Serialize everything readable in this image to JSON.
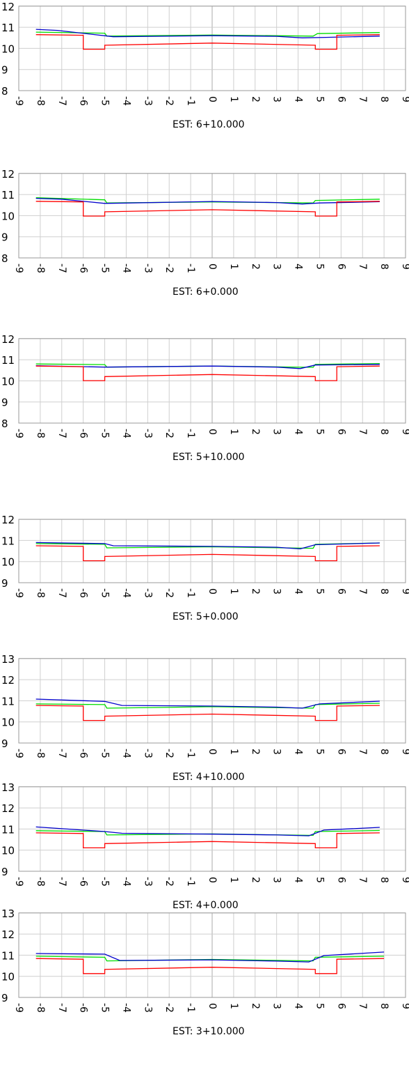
{
  "chart_data": [
    {
      "type": "line",
      "title": "EST:  6+10.000",
      "x_ticks": [
        -9,
        -8,
        -7,
        -6,
        -5,
        -4,
        -3,
        -2,
        -1,
        0,
        1,
        2,
        3,
        4,
        5,
        6,
        7,
        8,
        9
      ],
      "y_ticks": [
        8,
        9,
        10,
        11,
        12
      ],
      "xlim": [
        -9,
        9
      ],
      "ylim": [
        8,
        12
      ],
      "grid": true,
      "series": [
        {
          "color": "#00dd00",
          "points": [
            [
              -8.2,
              10.77
            ],
            [
              -5.0,
              10.72
            ],
            [
              -4.9,
              10.58
            ],
            [
              0,
              10.63
            ],
            [
              4.7,
              10.58
            ],
            [
              4.9,
              10.7
            ],
            [
              7.8,
              10.75
            ]
          ]
        },
        {
          "color": "#0000cc",
          "points": [
            [
              -8.2,
              10.9
            ],
            [
              -7.2,
              10.85
            ],
            [
              -4.6,
              10.55
            ],
            [
              0,
              10.6
            ],
            [
              3.0,
              10.57
            ],
            [
              4.2,
              10.5
            ],
            [
              5.3,
              10.52
            ],
            [
              7.8,
              10.58
            ]
          ]
        },
        {
          "color": "#ff0000",
          "points": [
            [
              -8.2,
              10.65
            ],
            [
              -6.0,
              10.62
            ],
            [
              -6.0,
              9.96
            ],
            [
              -5.0,
              9.96
            ],
            [
              -5.0,
              10.15
            ],
            [
              0,
              10.25
            ],
            [
              4.8,
              10.15
            ],
            [
              4.8,
              9.96
            ],
            [
              5.8,
              9.96
            ],
            [
              5.8,
              10.62
            ],
            [
              7.8,
              10.65
            ]
          ]
        }
      ]
    },
    {
      "type": "line",
      "title": "EST:  6+0.000",
      "x_ticks": [
        -9,
        -8,
        -7,
        -6,
        -5,
        -4,
        -3,
        -2,
        -1,
        0,
        1,
        2,
        3,
        4,
        5,
        6,
        7,
        8,
        9
      ],
      "y_ticks": [
        8,
        9,
        10,
        11,
        12
      ],
      "xlim": [
        -9,
        9
      ],
      "ylim": [
        8,
        12
      ],
      "grid": true,
      "series": [
        {
          "color": "#00dd00",
          "points": [
            [
              -8.2,
              10.85
            ],
            [
              -5.0,
              10.75
            ],
            [
              -4.9,
              10.6
            ],
            [
              0,
              10.65
            ],
            [
              4.7,
              10.6
            ],
            [
              4.8,
              10.72
            ],
            [
              7.8,
              10.78
            ]
          ]
        },
        {
          "color": "#0000cc",
          "points": [
            [
              -8.2,
              10.82
            ],
            [
              -7.0,
              10.78
            ],
            [
              -5.0,
              10.58
            ],
            [
              0,
              10.67
            ],
            [
              3.0,
              10.62
            ],
            [
              4.2,
              10.55
            ],
            [
              5.0,
              10.6
            ],
            [
              7.8,
              10.66
            ]
          ]
        },
        {
          "color": "#ff0000",
          "points": [
            [
              -8.2,
              10.68
            ],
            [
              -6.0,
              10.65
            ],
            [
              -6.0,
              9.98
            ],
            [
              -5.0,
              9.98
            ],
            [
              -5.0,
              10.18
            ],
            [
              0,
              10.28
            ],
            [
              4.8,
              10.18
            ],
            [
              4.8,
              9.98
            ],
            [
              5.8,
              9.98
            ],
            [
              5.8,
              10.65
            ],
            [
              7.8,
              10.68
            ]
          ]
        }
      ]
    },
    {
      "type": "line",
      "title": "EST:  5+10.000",
      "x_ticks": [
        -9,
        -8,
        -7,
        -6,
        -5,
        -4,
        -3,
        -2,
        -1,
        0,
        1,
        2,
        3,
        4,
        5,
        6,
        7,
        8,
        9
      ],
      "y_ticks": [
        8,
        9,
        10,
        11,
        12
      ],
      "xlim": [
        -9,
        9
      ],
      "ylim": [
        8,
        12
      ],
      "grid": true,
      "series": [
        {
          "color": "#00dd00",
          "points": [
            [
              -8.2,
              10.8
            ],
            [
              -5.0,
              10.77
            ],
            [
              -4.9,
              10.65
            ],
            [
              0,
              10.7
            ],
            [
              4.7,
              10.64
            ],
            [
              4.8,
              10.78
            ],
            [
              7.8,
              10.82
            ]
          ]
        },
        {
          "color": "#0000cc",
          "points": [
            [
              -8.2,
              10.72
            ],
            [
              -5.0,
              10.65
            ],
            [
              0,
              10.7
            ],
            [
              3.0,
              10.65
            ],
            [
              4.1,
              10.58
            ],
            [
              4.8,
              10.75
            ],
            [
              7.8,
              10.78
            ]
          ]
        },
        {
          "color": "#ff0000",
          "points": [
            [
              -8.2,
              10.7
            ],
            [
              -6.0,
              10.67
            ],
            [
              -6.0,
              10.01
            ],
            [
              -5.0,
              10.01
            ],
            [
              -5.0,
              10.2
            ],
            [
              0,
              10.3
            ],
            [
              4.8,
              10.2
            ],
            [
              4.8,
              10.01
            ],
            [
              5.8,
              10.01
            ],
            [
              5.8,
              10.67
            ],
            [
              7.8,
              10.7
            ]
          ]
        }
      ]
    },
    {
      "type": "line",
      "title": "EST:  5+0.000",
      "x_ticks": [
        -9,
        -8,
        -7,
        -6,
        -5,
        -4,
        -3,
        -2,
        -1,
        0,
        1,
        2,
        3,
        4,
        5,
        6,
        7,
        8,
        9
      ],
      "y_ticks": [
        9,
        10,
        11,
        12
      ],
      "xlim": [
        -9,
        9
      ],
      "ylim": [
        9,
        12
      ],
      "grid": true,
      "series": [
        {
          "color": "#00dd00",
          "points": [
            [
              -8.2,
              10.85
            ],
            [
              -5.0,
              10.82
            ],
            [
              -4.9,
              10.65
            ],
            [
              0,
              10.7
            ],
            [
              4.7,
              10.63
            ],
            [
              4.8,
              10.82
            ],
            [
              7.8,
              10.88
            ]
          ]
        },
        {
          "color": "#0000cc",
          "points": [
            [
              -8.2,
              10.9
            ],
            [
              -5.0,
              10.85
            ],
            [
              -4.6,
              10.75
            ],
            [
              0,
              10.72
            ],
            [
              3.0,
              10.68
            ],
            [
              4.1,
              10.6
            ],
            [
              4.8,
              10.8
            ],
            [
              7.8,
              10.88
            ]
          ]
        },
        {
          "color": "#ff0000",
          "points": [
            [
              -8.2,
              10.75
            ],
            [
              -6.0,
              10.72
            ],
            [
              -6.0,
              10.04
            ],
            [
              -5.0,
              10.04
            ],
            [
              -5.0,
              10.24
            ],
            [
              0,
              10.34
            ],
            [
              4.8,
              10.24
            ],
            [
              4.8,
              10.04
            ],
            [
              5.8,
              10.04
            ],
            [
              5.8,
              10.72
            ],
            [
              7.8,
              10.75
            ]
          ]
        }
      ]
    },
    {
      "type": "line",
      "title": "EST:  4+10.000",
      "x_ticks": [
        -9,
        -8,
        -7,
        -6,
        -5,
        -4,
        -3,
        -2,
        -1,
        0,
        1,
        2,
        3,
        4,
        5,
        6,
        7,
        8,
        9
      ],
      "y_ticks": [
        9,
        10,
        11,
        12,
        13
      ],
      "xlim": [
        -9,
        9
      ],
      "ylim": [
        9,
        13
      ],
      "grid": true,
      "series": [
        {
          "color": "#00dd00",
          "points": [
            [
              -8.2,
              10.85
            ],
            [
              -5.0,
              10.82
            ],
            [
              -4.9,
              10.65
            ],
            [
              0,
              10.72
            ],
            [
              4.7,
              10.65
            ],
            [
              4.8,
              10.82
            ],
            [
              7.8,
              10.88
            ]
          ]
        },
        {
          "color": "#0000cc",
          "points": [
            [
              -8.2,
              11.08
            ],
            [
              -5.0,
              10.97
            ],
            [
              -4.2,
              10.78
            ],
            [
              0,
              10.75
            ],
            [
              3.0,
              10.7
            ],
            [
              4.2,
              10.65
            ],
            [
              5.0,
              10.85
            ],
            [
              7.8,
              10.98
            ]
          ]
        },
        {
          "color": "#ff0000",
          "points": [
            [
              -8.2,
              10.78
            ],
            [
              -6.0,
              10.75
            ],
            [
              -6.0,
              10.07
            ],
            [
              -5.0,
              10.07
            ],
            [
              -5.0,
              10.27
            ],
            [
              0,
              10.37
            ],
            [
              4.8,
              10.27
            ],
            [
              4.8,
              10.07
            ],
            [
              5.8,
              10.07
            ],
            [
              5.8,
              10.75
            ],
            [
              7.8,
              10.78
            ]
          ]
        }
      ]
    },
    {
      "type": "line",
      "title": "EST:  4+0.000",
      "x_ticks": [
        -9,
        -8,
        -7,
        -6,
        -5,
        -4,
        -3,
        -2,
        -1,
        0,
        1,
        2,
        3,
        4,
        5,
        6,
        7,
        8,
        9
      ],
      "y_ticks": [
        9,
        10,
        11,
        12,
        13
      ],
      "xlim": [
        -9,
        9
      ],
      "ylim": [
        9,
        13
      ],
      "grid": true,
      "series": [
        {
          "color": "#00dd00",
          "points": [
            [
              -8.2,
              10.92
            ],
            [
              -5.0,
              10.88
            ],
            [
              -4.9,
              10.72
            ],
            [
              0,
              10.77
            ],
            [
              4.7,
              10.7
            ],
            [
              4.8,
              10.88
            ],
            [
              7.8,
              10.93
            ]
          ]
        },
        {
          "color": "#0000cc",
          "points": [
            [
              -8.2,
              11.1
            ],
            [
              -5.0,
              10.88
            ],
            [
              -4.2,
              10.8
            ],
            [
              0,
              10.76
            ],
            [
              3.0,
              10.72
            ],
            [
              4.5,
              10.68
            ],
            [
              5.2,
              10.95
            ],
            [
              7.8,
              11.08
            ]
          ]
        },
        {
          "color": "#ff0000",
          "points": [
            [
              -8.2,
              10.82
            ],
            [
              -6.0,
              10.79
            ],
            [
              -6.0,
              10.11
            ],
            [
              -5.0,
              10.11
            ],
            [
              -5.0,
              10.31
            ],
            [
              0,
              10.41
            ],
            [
              4.8,
              10.31
            ],
            [
              4.8,
              10.11
            ],
            [
              5.8,
              10.11
            ],
            [
              5.8,
              10.79
            ],
            [
              7.8,
              10.82
            ]
          ]
        }
      ]
    },
    {
      "type": "line",
      "title": "EST:  3+10.000",
      "x_ticks": [
        -9,
        -8,
        -7,
        -6,
        -5,
        -4,
        -3,
        -2,
        -1,
        0,
        1,
        2,
        3,
        4,
        5,
        6,
        7,
        8,
        9
      ],
      "y_ticks": [
        9,
        10,
        11,
        12,
        13
      ],
      "xlim": [
        -9,
        9
      ],
      "ylim": [
        9,
        13
      ],
      "grid": true,
      "series": [
        {
          "color": "#00dd00",
          "points": [
            [
              -8.2,
              10.95
            ],
            [
              -5.0,
              10.9
            ],
            [
              -4.9,
              10.73
            ],
            [
              0,
              10.8
            ],
            [
              4.7,
              10.73
            ],
            [
              4.8,
              10.9
            ],
            [
              8.0,
              10.95
            ]
          ]
        },
        {
          "color": "#0000cc",
          "points": [
            [
              -8.2,
              11.08
            ],
            [
              -5.0,
              11.05
            ],
            [
              -4.3,
              10.75
            ],
            [
              0,
              10.78
            ],
            [
              3.0,
              10.72
            ],
            [
              4.5,
              10.68
            ],
            [
              5.2,
              10.98
            ],
            [
              8.0,
              11.15
            ]
          ]
        },
        {
          "color": "#ff0000",
          "points": [
            [
              -8.2,
              10.84
            ],
            [
              -6.0,
              10.81
            ],
            [
              -6.0,
              10.13
            ],
            [
              -5.0,
              10.13
            ],
            [
              -5.0,
              10.33
            ],
            [
              0,
              10.43
            ],
            [
              4.8,
              10.33
            ],
            [
              4.8,
              10.13
            ],
            [
              5.8,
              10.13
            ],
            [
              5.8,
              10.81
            ],
            [
              8.0,
              10.84
            ]
          ]
        }
      ]
    }
  ]
}
